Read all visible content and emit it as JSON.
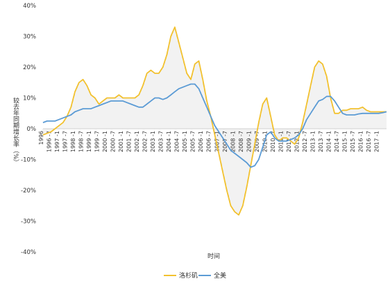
{
  "chart_data": {
    "type": "line",
    "title": "",
    "xlabel": "时间",
    "ylabel": "较去年同期增长率（%）",
    "ylim": [
      -40,
      40
    ],
    "y_ticks": [
      "-40%",
      "-30%",
      "-20%",
      "-10%",
      "0%",
      "10%",
      "20%",
      "30%",
      "40%"
    ],
    "y_tick_values": [
      -40,
      -30,
      -20,
      -10,
      0,
      10,
      20,
      30,
      40
    ],
    "x_tick_labels": [
      "1996",
      "1996 -7",
      "1997 -1",
      "1997 -7",
      "1998 -1",
      "1998 -7",
      "1999 -1",
      "1999 -7",
      "2000 -1",
      "2000 -7",
      "2001 -1",
      "2001 -7",
      "2002 -1",
      "2002 -7",
      "2003 -1",
      "2003 -7",
      "2004 -1",
      "2004 -7",
      "2005 -1",
      "2005 -7",
      "2006 -1",
      "2006 -7",
      "2007 -1",
      "2007 -7",
      "2008 -1",
      "2008 -7",
      "2009 -1",
      "2009 -7",
      "2010 -1",
      "2010 -7",
      "2011 -1",
      "2011 -7",
      "2012 -1",
      "2012 -7",
      "2013 -1",
      "2013 -7",
      "2014 -1",
      "2014 -7",
      "2015 -1",
      "2015 -7",
      "2016 -1",
      "2016 -7",
      "2017 -1"
    ],
    "x_range": [
      1996.0,
      2017.5
    ],
    "grid": false,
    "legend_position": "bottom",
    "series": [
      {
        "name": "洛杉矶",
        "color": "#F2C12E",
        "x": [
          1996.0,
          1996.25,
          1996.5,
          1996.75,
          1997.0,
          1997.25,
          1997.5,
          1997.75,
          1998.0,
          1998.25,
          1998.5,
          1998.75,
          1999.0,
          1999.25,
          1999.5,
          1999.75,
          2000.0,
          2000.25,
          2000.5,
          2000.75,
          2001.0,
          2001.25,
          2001.5,
          2001.75,
          2002.0,
          2002.25,
          2002.5,
          2002.75,
          2003.0,
          2003.25,
          2003.5,
          2003.75,
          2004.0,
          2004.25,
          2004.5,
          2004.75,
          2005.0,
          2005.25,
          2005.5,
          2005.75,
          2006.0,
          2006.25,
          2006.5,
          2006.75,
          2007.0,
          2007.25,
          2007.5,
          2007.75,
          2008.0,
          2008.25,
          2008.5,
          2008.75,
          2009.0,
          2009.25,
          2009.5,
          2009.75,
          2010.0,
          2010.25,
          2010.5,
          2010.75,
          2011.0,
          2011.25,
          2011.5,
          2011.75,
          2012.0,
          2012.25,
          2012.5,
          2012.75,
          2013.0,
          2013.25,
          2013.5,
          2013.75,
          2014.0,
          2014.25,
          2014.5,
          2014.75,
          2015.0,
          2015.25,
          2015.5,
          2015.75,
          2016.0,
          2016.25,
          2016.5,
          2016.75,
          2017.0,
          2017.25,
          2017.5
        ],
        "values": [
          -2,
          -1.5,
          -1,
          0,
          1,
          2,
          4,
          7,
          12,
          15,
          16,
          14,
          11,
          10,
          8,
          9,
          10,
          10,
          10,
          11,
          10,
          10,
          10,
          10,
          11,
          14,
          18,
          19,
          18,
          18,
          20,
          24,
          30,
          33,
          28,
          23,
          18,
          16,
          21,
          22,
          16,
          9,
          4,
          -2,
          -8,
          -14,
          -20,
          -25,
          -27,
          -28,
          -25,
          -19,
          -12,
          -5,
          2,
          8,
          10,
          4,
          -2,
          -4,
          -3,
          -3,
          -4,
          -5,
          -3,
          2,
          8,
          14,
          20,
          22,
          21,
          17,
          10,
          5,
          5,
          6,
          6,
          6.5,
          6.5,
          6.5,
          7,
          6,
          5.5,
          5.5,
          5.5,
          5.5,
          5.5
        ]
      },
      {
        "name": "全美",
        "color": "#5B9BD5",
        "x": [
          1996.0,
          1996.25,
          1996.5,
          1996.75,
          1997.0,
          1997.25,
          1997.5,
          1997.75,
          1998.0,
          1998.25,
          1998.5,
          1998.75,
          1999.0,
          1999.25,
          1999.5,
          1999.75,
          2000.0,
          2000.25,
          2000.5,
          2000.75,
          2001.0,
          2001.25,
          2001.5,
          2001.75,
          2002.0,
          2002.25,
          2002.5,
          2002.75,
          2003.0,
          2003.25,
          2003.5,
          2003.75,
          2004.0,
          2004.25,
          2004.5,
          2004.75,
          2005.0,
          2005.25,
          2005.5,
          2005.75,
          2006.0,
          2006.25,
          2006.5,
          2006.75,
          2007.0,
          2007.25,
          2007.5,
          2007.75,
          2008.0,
          2008.25,
          2008.5,
          2008.75,
          2009.0,
          2009.25,
          2009.5,
          2009.75,
          2010.0,
          2010.25,
          2010.5,
          2010.75,
          2011.0,
          2011.25,
          2011.5,
          2011.75,
          2012.0,
          2012.25,
          2012.5,
          2012.75,
          2013.0,
          2013.25,
          2013.5,
          2013.75,
          2014.0,
          2014.25,
          2014.5,
          2014.75,
          2015.0,
          2015.25,
          2015.5,
          2015.75,
          2016.0,
          2016.25,
          2016.5,
          2016.75,
          2017.0,
          2017.25,
          2017.5
        ],
        "values": [
          2,
          2.5,
          2.5,
          2.5,
          3,
          3.5,
          4,
          4.5,
          5.5,
          6,
          6.5,
          6.5,
          6.5,
          7,
          7.5,
          8,
          8.5,
          9,
          9,
          9,
          9,
          8.5,
          8,
          7.5,
          7,
          7,
          8,
          9,
          10,
          10,
          9.5,
          10,
          11,
          12,
          13,
          13.5,
          14,
          14.5,
          14.5,
          13,
          10,
          7,
          4,
          1,
          -1,
          -3,
          -5,
          -7,
          -8,
          -9,
          -10,
          -11,
          -12.5,
          -12,
          -10,
          -6,
          -2,
          -1,
          -3,
          -4,
          -4,
          -4,
          -3.5,
          -3,
          -2,
          0,
          3,
          5,
          7,
          9,
          9.5,
          10.5,
          10.5,
          9,
          7,
          5,
          4.5,
          4.5,
          4.5,
          4.8,
          5,
          5,
          5,
          5,
          5,
          5.2,
          5.5
        ]
      }
    ]
  }
}
